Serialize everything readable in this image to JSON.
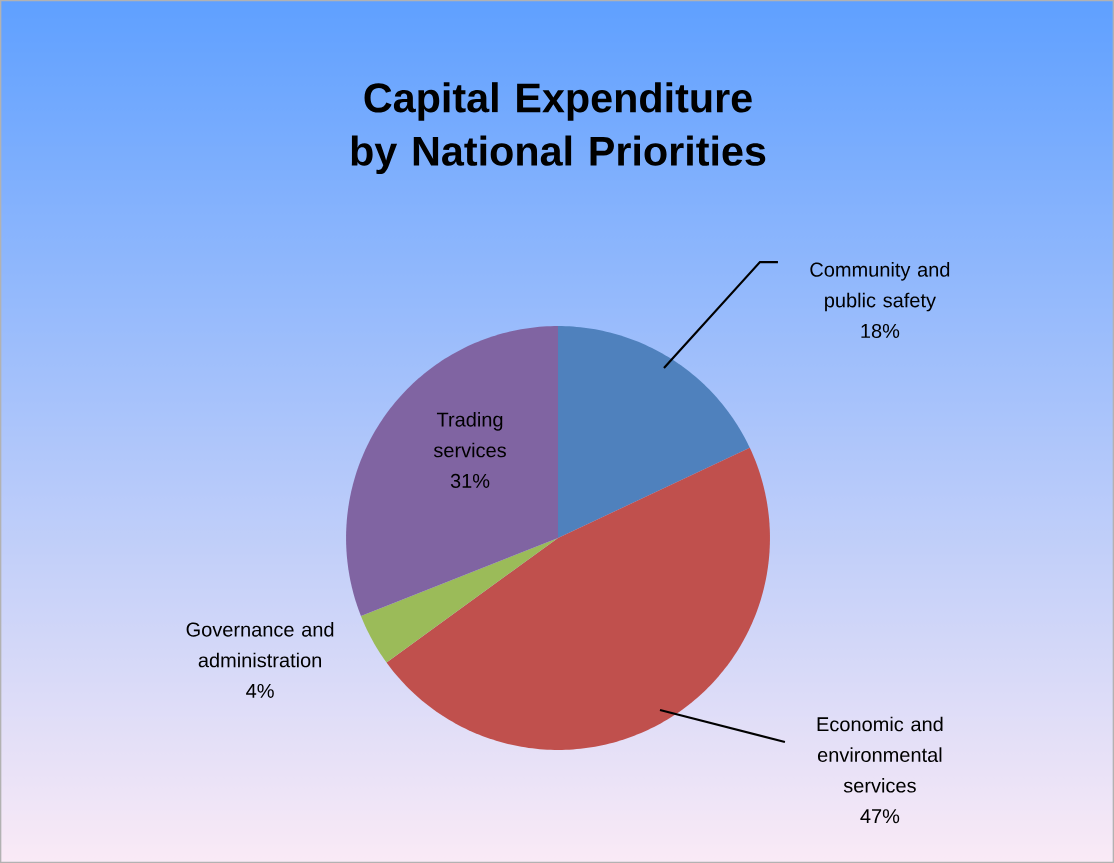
{
  "chart_data": {
    "type": "pie",
    "title": "Capital Expenditure by National Priorities",
    "categories": [
      "Community and public safety",
      "Economic and environmental services",
      "Governance and administration",
      "Trading services"
    ],
    "values": [
      18,
      47,
      4,
      31
    ],
    "colors": [
      "#4f81bd",
      "#c0504d",
      "#9bbb59",
      "#8064a2"
    ],
    "value_labels": [
      "18%",
      "47%",
      "4%",
      "31%"
    ]
  }
}
